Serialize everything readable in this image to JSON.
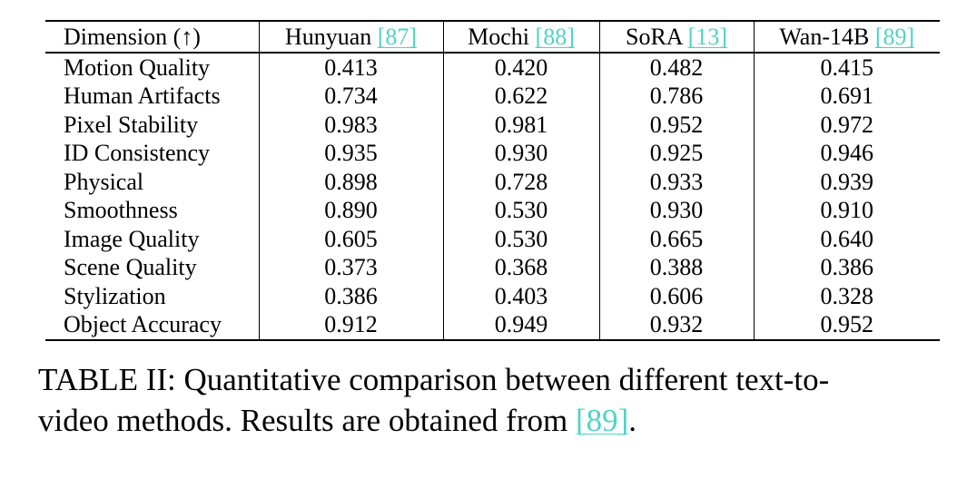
{
  "table": {
    "headers": [
      {
        "text": "Dimension (↑)",
        "cite": ""
      },
      {
        "text": "Hunyuan ",
        "cite": "[87]"
      },
      {
        "text": "Mochi ",
        "cite": "[88]"
      },
      {
        "text": "SoRA ",
        "cite": "[13]"
      },
      {
        "text": "Wan-14B ",
        "cite": "[89]"
      }
    ],
    "rows": [
      [
        "Motion Quality",
        "0.413",
        "0.420",
        "0.482",
        "0.415"
      ],
      [
        "Human Artifacts",
        "0.734",
        "0.622",
        "0.786",
        "0.691"
      ],
      [
        "Pixel Stability",
        "0.983",
        "0.981",
        "0.952",
        "0.972"
      ],
      [
        "ID Consistency",
        "0.935",
        "0.930",
        "0.925",
        "0.946"
      ],
      [
        "Physical",
        "0.898",
        "0.728",
        "0.933",
        "0.939"
      ],
      [
        "Smoothness",
        "0.890",
        "0.530",
        "0.930",
        "0.910"
      ],
      [
        "Image Quality",
        "0.605",
        "0.530",
        "0.665",
        "0.640"
      ],
      [
        "Scene Quality",
        "0.373",
        "0.368",
        "0.388",
        "0.386"
      ],
      [
        "Stylization",
        "0.386",
        "0.403",
        "0.606",
        "0.328"
      ],
      [
        "Object Accuracy",
        "0.912",
        "0.949",
        "0.932",
        "0.952"
      ]
    ]
  },
  "caption": {
    "line1": "TABLE II: Quantitative comparison between different text-to-",
    "line2_pre": "video methods. Results are obtained from ",
    "line2_cite": "[89]",
    "line2_post": "."
  },
  "colors": {
    "citation": "#4fd3c4",
    "text": "#000000"
  }
}
